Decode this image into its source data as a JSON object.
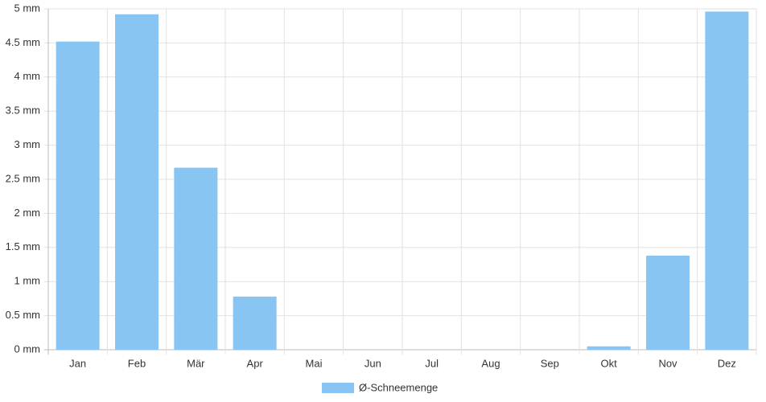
{
  "chart_data": {
    "type": "bar",
    "categories": [
      "Jan",
      "Feb",
      "Mär",
      "Apr",
      "Mai",
      "Jun",
      "Jul",
      "Aug",
      "Sep",
      "Okt",
      "Nov",
      "Dez"
    ],
    "series": [
      {
        "name": "Ø-Schneemenge",
        "color": "#88c5f3",
        "values": [
          4.52,
          4.92,
          2.67,
          0.78,
          0,
          0,
          0,
          0,
          0,
          0.05,
          1.38,
          4.96
        ]
      }
    ],
    "ylim": [
      0,
      5
    ],
    "yticks": [
      {
        "value": 0,
        "label": "0 mm"
      },
      {
        "value": 0.5,
        "label": "0.5 mm"
      },
      {
        "value": 1,
        "label": "1 mm"
      },
      {
        "value": 1.5,
        "label": "1.5 mm"
      },
      {
        "value": 2,
        "label": "2 mm"
      },
      {
        "value": 2.5,
        "label": "2.5 mm"
      },
      {
        "value": 3,
        "label": "3 mm"
      },
      {
        "value": 3.5,
        "label": "3.5 mm"
      },
      {
        "value": 4,
        "label": "4 mm"
      },
      {
        "value": 4.5,
        "label": "4.5 mm"
      },
      {
        "value": 5,
        "label": "5 mm"
      }
    ],
    "grid": true,
    "legend": "bottom"
  }
}
